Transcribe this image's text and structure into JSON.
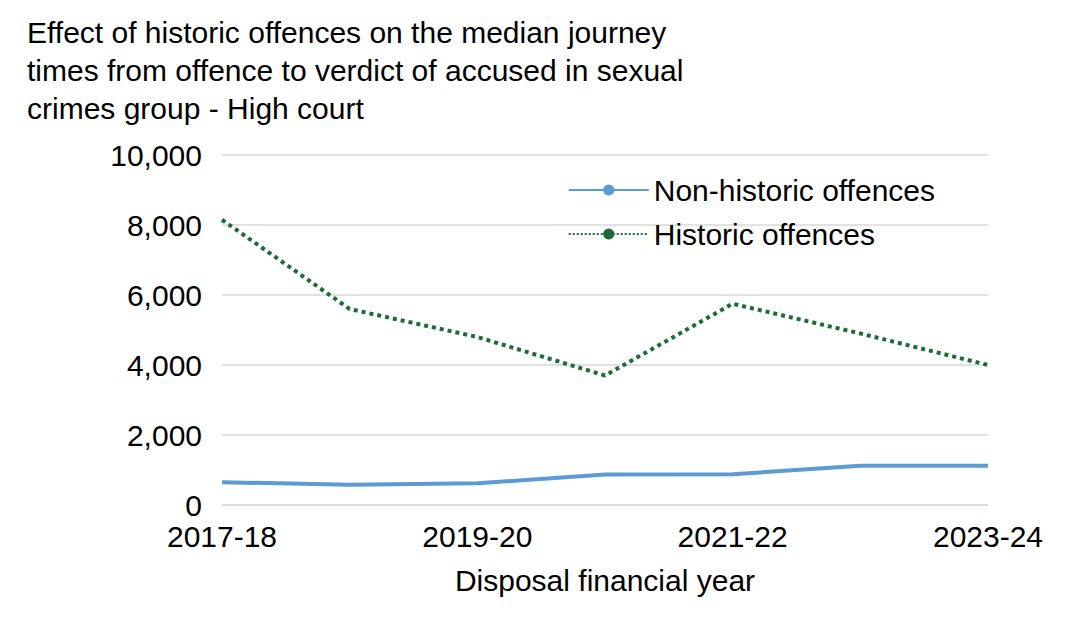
{
  "chart_data": {
    "type": "line",
    "title": "Effect of historic offences on the median journey\ntimes from offence to verdict of accused in sexual\ncrimes group - High court",
    "x_label": "Disposal financial year",
    "categories": [
      "2017-18",
      null,
      "2019-20",
      null,
      "2021-22",
      null,
      "2023-24"
    ],
    "series": [
      {
        "name": "Non-historic offences",
        "color": "#5b9bd5",
        "line_style": "solid",
        "marker": "none",
        "values": [
          650,
          580,
          620,
          870,
          880,
          1120,
          1120
        ]
      },
      {
        "name": "Historic offences",
        "color": "#1e6b3a",
        "line_style": "dotted",
        "marker": "none",
        "values": [
          8150,
          5600,
          4800,
          3700,
          5750,
          4900,
          4000
        ]
      }
    ],
    "ylim": [
      0,
      10000
    ],
    "yticks": [
      0,
      {
        "value": 2000,
        "label": "2,000"
      },
      {
        "value": 4000,
        "label": "4,000"
      },
      {
        "value": 6000,
        "label": "6,000"
      },
      {
        "value": 8000,
        "label": "8,000"
      },
      {
        "value": 10000,
        "label": "10,000"
      }
    ],
    "grid": true,
    "legend": "top-right"
  }
}
